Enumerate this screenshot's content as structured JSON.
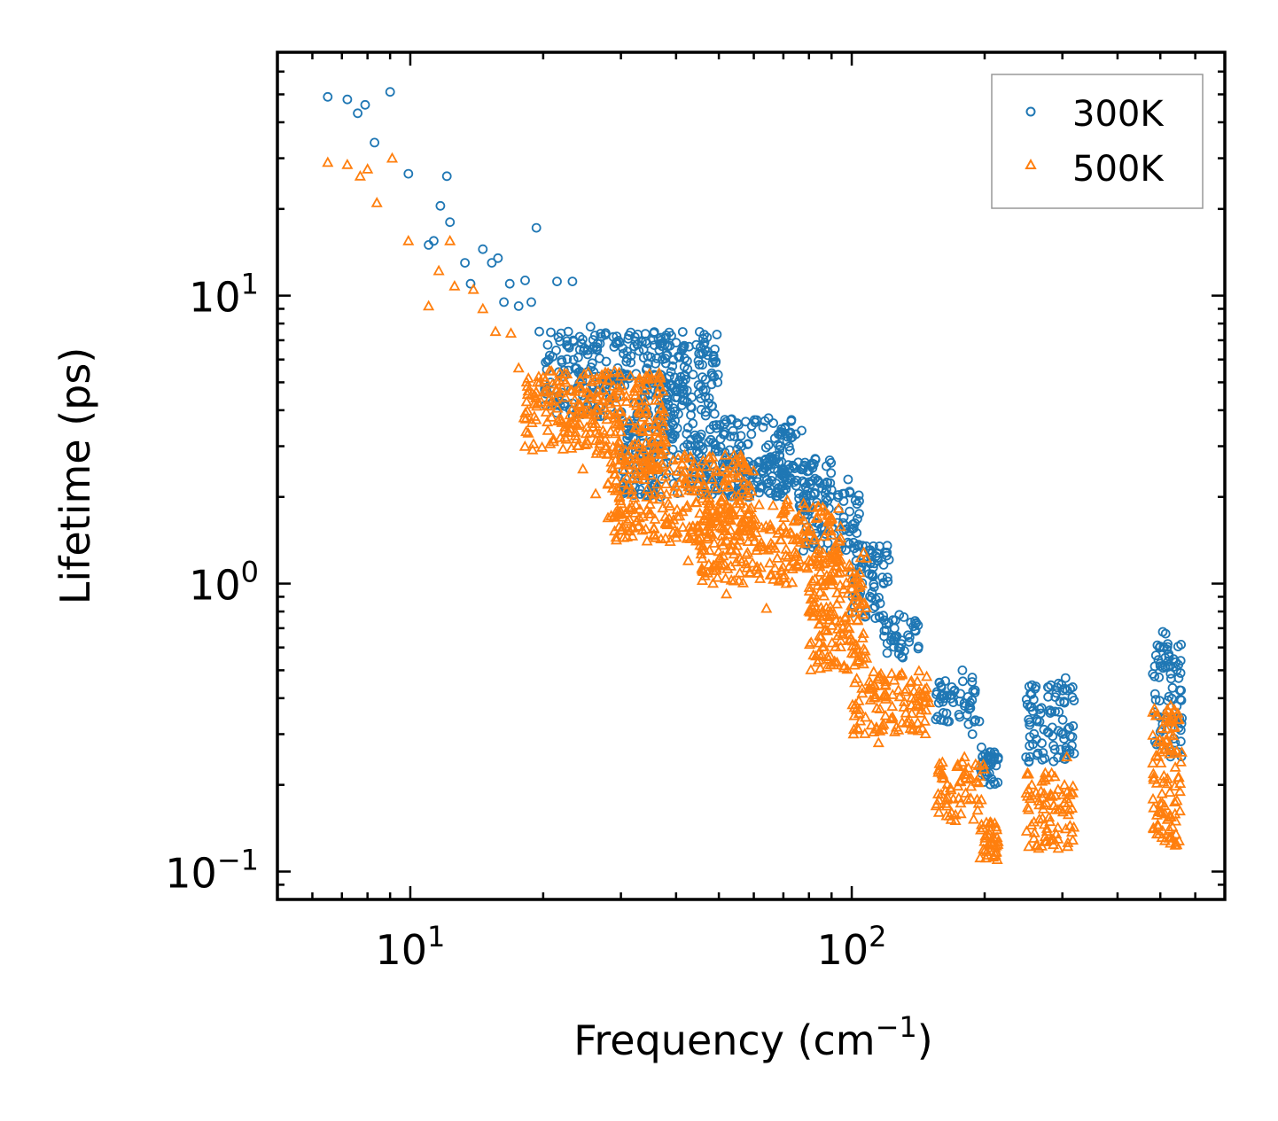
{
  "chart_data": {
    "type": "scatter",
    "title": "",
    "xlabel": "Frequency (cm",
    "xlabel_sup": "−1",
    "xlabel_end": ")",
    "ylabel": "Lifetime (ps)",
    "xscale": "log",
    "yscale": "log",
    "xlim": [
      5,
      700
    ],
    "ylim": [
      0.08,
      70
    ],
    "legend_position": "top-right",
    "x_ticks": [
      {
        "value": 10,
        "base": "10",
        "exp": "1"
      },
      {
        "value": 100,
        "base": "10",
        "exp": "2"
      }
    ],
    "y_ticks": [
      {
        "value": 0.1,
        "base": "10",
        "exp": "−1"
      },
      {
        "value": 1,
        "base": "10",
        "exp": "0"
      },
      {
        "value": 10,
        "base": "10",
        "exp": "1"
      }
    ],
    "series": [
      {
        "name": "300K",
        "marker": "circle",
        "color": "#1f77b4",
        "points": [
          [
            6.5,
            49
          ],
          [
            7.2,
            48
          ],
          [
            7.6,
            43
          ],
          [
            7.9,
            46
          ],
          [
            8.3,
            34
          ],
          [
            9.0,
            51
          ],
          [
            9.9,
            26.5
          ],
          [
            11,
            15
          ],
          [
            11.3,
            15.5
          ],
          [
            11.7,
            20.5
          ],
          [
            12.1,
            26
          ],
          [
            12.3,
            18
          ],
          [
            13.3,
            13
          ],
          [
            13.7,
            11
          ],
          [
            14.6,
            14.5
          ],
          [
            15.3,
            13
          ],
          [
            15.8,
            13.5
          ],
          [
            16.3,
            9.5
          ],
          [
            16.8,
            11
          ],
          [
            17.6,
            9.2
          ],
          [
            18.2,
            11.3
          ],
          [
            18.8,
            9.5
          ],
          [
            19.3,
            17.2
          ],
          [
            19.6,
            7.5
          ],
          [
            20.7,
            6.2
          ],
          [
            21.5,
            11.2
          ],
          [
            22.8,
            7.5
          ],
          [
            23.3,
            11.2
          ],
          [
            24.2,
            7.2
          ],
          [
            25.6,
            7.8
          ],
          [
            27.1,
            7.2
          ],
          [
            29.5,
            5.6
          ],
          [
            31.0,
            6.4
          ],
          [
            33.4,
            4.4
          ],
          [
            38.4,
            4.2
          ],
          [
            39.7,
            5.2
          ],
          [
            45.6,
            3.3
          ],
          [
            51.4,
            3.3
          ],
          [
            56.3,
            3.0
          ],
          [
            60.2,
            3.7
          ],
          [
            68.8,
            3.0
          ],
          [
            77.0,
            3.4
          ],
          [
            98.1,
            2.3
          ],
          [
            114.8,
            1.2
          ],
          [
            125.0,
            0.7
          ],
          [
            178.1,
            0.5
          ],
          [
            187.6,
            0.3
          ],
          [
            196.7,
            0.27
          ],
          [
            253.2,
            0.33
          ],
          [
            305.0,
            0.47
          ],
          [
            506.5,
            0.68
          ],
          [
            514.0,
            0.67
          ]
        ],
        "clusters": [
          {
            "x": [
              20,
              50
            ],
            "y": [
              3.8,
              7.5
            ]
          },
          {
            "x": [
              30,
              75
            ],
            "y": [
              2.0,
              3.8
            ]
          },
          {
            "x": [
              55,
              90
            ],
            "y": [
              2.0,
              2.8
            ]
          },
          {
            "x": [
              75,
              105
            ],
            "y": [
              1.3,
              2.1
            ]
          },
          {
            "x": [
              100,
              122
            ],
            "y": [
              0.75,
              1.4
            ]
          },
          {
            "x": [
              118,
              142
            ],
            "y": [
              0.55,
              0.78
            ]
          },
          {
            "x": [
              155,
              195
            ],
            "y": [
              0.32,
              0.48
            ]
          },
          {
            "x": [
              196,
              215
            ],
            "y": [
              0.2,
              0.26
            ]
          },
          {
            "x": [
              248,
              320
            ],
            "y": [
              0.24,
              0.45
            ]
          },
          {
            "x": [
              480,
              560
            ],
            "y": [
              0.25,
              0.62
            ]
          }
        ]
      },
      {
        "name": "500K",
        "marker": "triangle",
        "color": "#ff7f0e",
        "points": [
          [
            6.5,
            29
          ],
          [
            7.2,
            28.5
          ],
          [
            7.7,
            26
          ],
          [
            8.0,
            27.5
          ],
          [
            8.4,
            21
          ],
          [
            9.1,
            30
          ],
          [
            9.9,
            15.5
          ],
          [
            11.0,
            9.2
          ],
          [
            11.6,
            12.2
          ],
          [
            12.3,
            15.5
          ],
          [
            12.6,
            10.8
          ],
          [
            13.9,
            10.5
          ],
          [
            14.6,
            9.0
          ],
          [
            15.6,
            7.5
          ],
          [
            16.9,
            7.4
          ],
          [
            17.6,
            5.6
          ],
          [
            19.1,
            4.2
          ],
          [
            20.5,
            3.4
          ],
          [
            22.4,
            3.5
          ],
          [
            24.6,
            2.5
          ],
          [
            26.3,
            2.05
          ],
          [
            29.0,
            2.4
          ],
          [
            31.2,
            2.2
          ],
          [
            34.4,
            1.8
          ],
          [
            38.8,
            1.4
          ],
          [
            42.6,
            1.2
          ],
          [
            46.0,
            1.35
          ],
          [
            52.0,
            0.92
          ],
          [
            58.3,
            1.4
          ],
          [
            64.1,
            0.82
          ],
          [
            71.4,
            1.95
          ],
          [
            81.6,
            0.82
          ],
          [
            89.5,
            0.8
          ],
          [
            94.2,
            0.74
          ],
          [
            108.0,
            0.55
          ],
          [
            115.0,
            0.28
          ],
          [
            180.0,
            0.25
          ],
          [
            213.6,
            0.11
          ],
          [
            272.2,
            0.17
          ],
          [
            307.0,
            0.25
          ],
          [
            497.0,
            0.135
          ],
          [
            519.0,
            0.21
          ]
        ],
        "clusters": [
          {
            "x": [
              18,
              38
            ],
            "y": [
              2.8,
              5.5
            ]
          },
          {
            "x": [
              28,
              60
            ],
            "y": [
              1.4,
              2.8
            ]
          },
          {
            "x": [
              45,
              95
            ],
            "y": [
              1.0,
              1.9
            ]
          },
          {
            "x": [
              80,
              108
            ],
            "y": [
              0.5,
              1.3
            ]
          },
          {
            "x": [
              100,
              150
            ],
            "y": [
              0.3,
              0.5
            ]
          },
          {
            "x": [
              155,
              200
            ],
            "y": [
              0.15,
              0.24
            ]
          },
          {
            "x": [
              195,
              215
            ],
            "y": [
              0.11,
              0.15
            ]
          },
          {
            "x": [
              248,
              320
            ],
            "y": [
              0.12,
              0.22
            ]
          },
          {
            "x": [
              480,
              560
            ],
            "y": [
              0.12,
              0.38
            ]
          }
        ]
      }
    ]
  }
}
